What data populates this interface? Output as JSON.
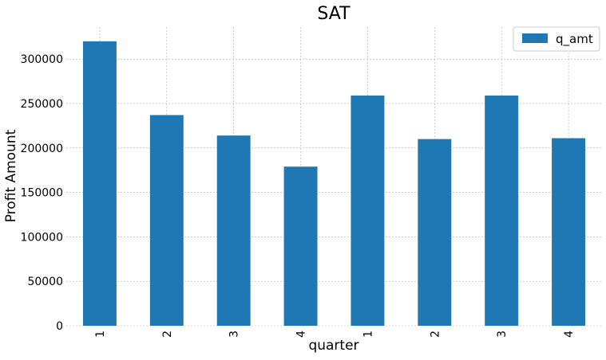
{
  "chart_data": {
    "type": "bar",
    "title": "SAT",
    "xlabel": "quarter",
    "ylabel": "Profit Amount",
    "categories": [
      "1",
      "2",
      "3",
      "4",
      "1",
      "2",
      "3",
      "4"
    ],
    "series": [
      {
        "name": "q_amt",
        "color": "#1f77b4",
        "values": [
          320000,
          237000,
          214000,
          179000,
          259000,
          210000,
          259000,
          211000
        ]
      }
    ],
    "yticks": [
      0,
      50000,
      100000,
      150000,
      200000,
      250000,
      300000
    ],
    "ylim": [
      0,
      336000
    ],
    "grid": true,
    "legend_position": "top-right"
  }
}
